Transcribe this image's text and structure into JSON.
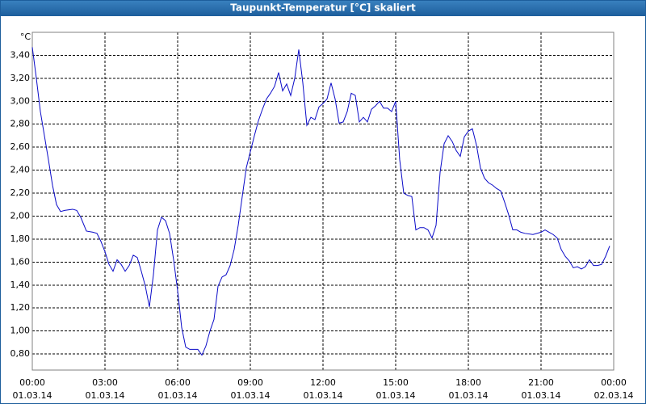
{
  "chart_data": {
    "type": "line",
    "title": "Taupunkt-Temperatur [°C] skaliert",
    "y_unit": "°C",
    "color": "#0a0ac8",
    "grid": true,
    "xlim": [
      0,
      1440
    ],
    "xticks": [
      {
        "value": 0,
        "label": "00:00"
      },
      {
        "value": 180,
        "label": "03:00"
      },
      {
        "value": 360,
        "label": "06:00"
      },
      {
        "value": 540,
        "label": "09:00"
      },
      {
        "value": 720,
        "label": "12:00"
      },
      {
        "value": 900,
        "label": "15:00"
      },
      {
        "value": 1080,
        "label": "18:00"
      },
      {
        "value": 1260,
        "label": "21:00"
      },
      {
        "value": 1440,
        "label": "00:00"
      }
    ],
    "xtick_dates": [
      "01.03.14",
      "01.03.14",
      "01.03.14",
      "01.03.14",
      "01.03.14",
      "01.03.14",
      "01.03.14",
      "01.03.14",
      "02.03.14"
    ],
    "ylim": [
      0.66,
      3.6
    ],
    "yticks": [
      {
        "value": 0.8,
        "label": "0,80"
      },
      {
        "value": 1.0,
        "label": "1,00"
      },
      {
        "value": 1.2,
        "label": "1,20"
      },
      {
        "value": 1.4,
        "label": "1,40"
      },
      {
        "value": 1.6,
        "label": "1,60"
      },
      {
        "value": 1.8,
        "label": "1,80"
      },
      {
        "value": 2.0,
        "label": "2,00"
      },
      {
        "value": 2.2,
        "label": "2,20"
      },
      {
        "value": 2.4,
        "label": "2,40"
      },
      {
        "value": 2.6,
        "label": "2,60"
      },
      {
        "value": 2.8,
        "label": "2,80"
      },
      {
        "value": 3.0,
        "label": "3,00"
      },
      {
        "value": 3.2,
        "label": "3,20"
      },
      {
        "value": 3.4,
        "label": "3,40"
      }
    ],
    "x": [
      0,
      10,
      20,
      30,
      40,
      50,
      60,
      70,
      80,
      100,
      110,
      120,
      134,
      150,
      160,
      170,
      180,
      190,
      200,
      210,
      220,
      230,
      240,
      250,
      260,
      270,
      280,
      290,
      300,
      310,
      320,
      330,
      340,
      350,
      360,
      370,
      380,
      390,
      400,
      410,
      420,
      430,
      440,
      450,
      460,
      470,
      480,
      490,
      500,
      510,
      520,
      530,
      540,
      550,
      560,
      570,
      580,
      590,
      600,
      610,
      620,
      630,
      640,
      650,
      660,
      670,
      680,
      690,
      700,
      710,
      720,
      730,
      740,
      750,
      760,
      770,
      780,
      790,
      800,
      810,
      820,
      830,
      840,
      850,
      860,
      870,
      880,
      890,
      900,
      910,
      920,
      930,
      940,
      950,
      960,
      970,
      980,
      990,
      1000,
      1010,
      1020,
      1030,
      1040,
      1050,
      1060,
      1070,
      1080,
      1090,
      1100,
      1110,
      1120,
      1130,
      1140,
      1150,
      1160,
      1170,
      1180,
      1190,
      1200,
      1210,
      1220,
      1240,
      1260,
      1270,
      1280,
      1290,
      1300,
      1310,
      1320,
      1330,
      1340,
      1350,
      1360,
      1370,
      1380,
      1390,
      1400,
      1410,
      1420,
      1430
    ],
    "values": [
      3.47,
      3.2,
      2.91,
      2.7,
      2.49,
      2.27,
      2.1,
      2.04,
      2.05,
      2.06,
      2.05,
      1.99,
      1.87,
      1.86,
      1.85,
      1.78,
      1.69,
      1.58,
      1.52,
      1.62,
      1.58,
      1.52,
      1.57,
      1.66,
      1.64,
      1.52,
      1.39,
      1.21,
      1.49,
      1.88,
      1.99,
      1.96,
      1.85,
      1.62,
      1.35,
      1.03,
      0.86,
      0.84,
      0.84,
      0.84,
      0.79,
      0.87,
      1.0,
      1.1,
      1.39,
      1.47,
      1.49,
      1.57,
      1.71,
      1.92,
      2.17,
      2.42,
      2.56,
      2.7,
      2.83,
      2.93,
      3.02,
      3.07,
      3.13,
      3.25,
      3.09,
      3.15,
      3.05,
      3.2,
      3.45,
      3.16,
      2.79,
      2.86,
      2.84,
      2.95,
      2.98,
      3.02,
      3.16,
      3.02,
      2.81,
      2.82,
      2.91,
      3.07,
      3.05,
      2.82,
      2.86,
      2.82,
      2.93,
      2.96,
      3.0,
      2.94,
      2.94,
      2.91,
      3.0,
      2.49,
      2.2,
      2.18,
      2.17,
      1.88,
      1.9,
      1.9,
      1.88,
      1.81,
      1.92,
      2.38,
      2.63,
      2.7,
      2.65,
      2.57,
      2.52,
      2.69,
      2.74,
      2.76,
      2.62,
      2.42,
      2.33,
      2.29,
      2.27,
      2.24,
      2.22,
      2.12,
      2.01,
      1.88,
      1.88,
      1.86,
      1.85,
      1.84,
      1.86,
      1.88,
      1.86,
      1.84,
      1.81,
      1.71,
      1.65,
      1.61,
      1.55,
      1.56,
      1.54,
      1.56,
      1.62,
      1.57,
      1.57,
      1.58,
      1.65,
      1.74
    ]
  }
}
